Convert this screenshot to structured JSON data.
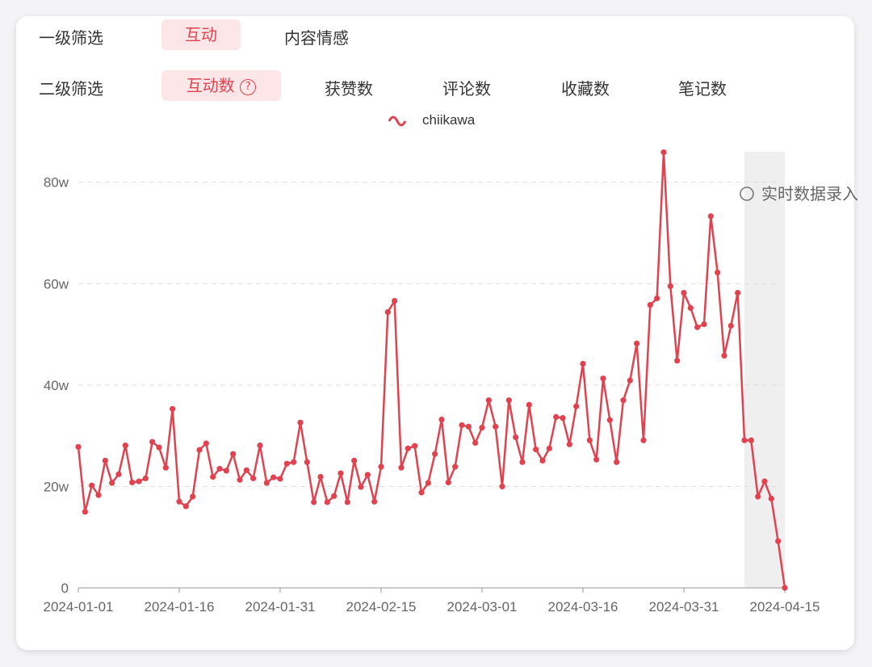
{
  "filters": {
    "level1": {
      "label": "一级筛选",
      "options": [
        "互动",
        "内容情感"
      ]
    },
    "level2": {
      "label": "二级筛选",
      "options": [
        "互动数",
        "获赞数",
        "评论数",
        "收藏数",
        "笔记数"
      ]
    }
  },
  "chart_data": {
    "type": "line",
    "annotation": "实时数据录入",
    "highlight_start": 99,
    "categories": [
      "2024-01-01",
      null,
      null,
      null,
      null,
      null,
      null,
      null,
      null,
      null,
      null,
      null,
      null,
      null,
      null,
      "2024-01-16",
      null,
      null,
      null,
      null,
      null,
      null,
      null,
      null,
      null,
      null,
      null,
      null,
      null,
      null,
      "2024-01-31",
      null,
      null,
      null,
      null,
      null,
      null,
      null,
      null,
      null,
      null,
      null,
      null,
      null,
      null,
      "2024-02-15",
      null,
      null,
      null,
      null,
      null,
      null,
      null,
      null,
      null,
      null,
      null,
      null,
      null,
      null,
      "2024-03-01",
      null,
      null,
      null,
      null,
      null,
      null,
      null,
      null,
      null,
      null,
      null,
      null,
      null,
      null,
      "2024-03-16",
      null,
      null,
      null,
      null,
      null,
      null,
      null,
      null,
      null,
      null,
      null,
      null,
      null,
      null,
      "2024-03-31",
      null,
      null,
      null,
      null,
      null,
      null,
      null,
      null,
      null,
      null,
      null,
      null,
      null,
      null,
      "2024-04-15"
    ],
    "series": [
      {
        "name": "chiikawa",
        "color": "#e0424f",
        "values": [
          27.8,
          15,
          20.2,
          18.3,
          25.1,
          20.7,
          22.4,
          28.1,
          20.8,
          21,
          21.6,
          28.8,
          27.7,
          23.7,
          35.3,
          17,
          16.1,
          18,
          27.2,
          28.5,
          21.9,
          23.5,
          23.1,
          26.4,
          21.3,
          23.2,
          21.6,
          28.1,
          20.7,
          21.8,
          21.5,
          24.5,
          24.8,
          32.6,
          24.8,
          16.9,
          21.9,
          16.9,
          18.1,
          22.6,
          16.9,
          25.1,
          19.9,
          22.3,
          17,
          23.9,
          54.4,
          56.6,
          23.7,
          27.5,
          28,
          18.8,
          20.7,
          26.4,
          33.2,
          20.8,
          23.9,
          32.1,
          31.8,
          28.6,
          31.6,
          37,
          31.8,
          20,
          37,
          29.7,
          24.8,
          36.1,
          27.3,
          25.1,
          27.5,
          33.7,
          33.5,
          28.3,
          35.8,
          44.2,
          29.1,
          25.3,
          41.3,
          33.1,
          24.8,
          37,
          40.9,
          48.2,
          29.1,
          55.8,
          57.1,
          85.9,
          59.5,
          44.8,
          58.2,
          55.2,
          51.4,
          52,
          73.3,
          62.2,
          45.8,
          51.7,
          58.2,
          29.1,
          29.1,
          18,
          21,
          17.6,
          9.2,
          0
        ]
      }
    ],
    "ylim": [
      0,
      86
    ],
    "yticks": [
      0,
      {
        "value": 20,
        "label": "20w"
      },
      {
        "value": 40,
        "label": "40w"
      },
      {
        "value": 60,
        "label": "60w"
      },
      {
        "value": 80,
        "label": "80w"
      }
    ],
    "grid": true
  }
}
